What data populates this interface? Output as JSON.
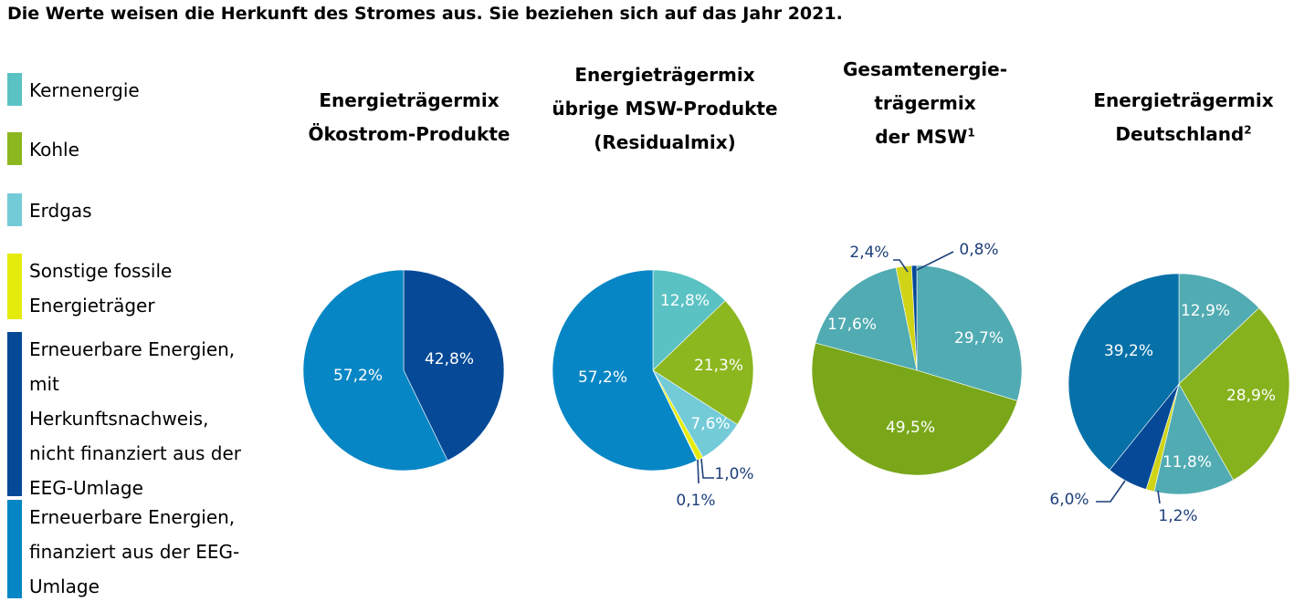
{
  "page_title": "Die Werte weisen die Herkunft des Stromes aus. Sie beziehen sich auf das Jahr 2021.",
  "legend": [
    {
      "label": [
        "Kernenergie"
      ],
      "color": "#5bc2c4"
    },
    {
      "label": [
        "Kohle"
      ],
      "color": "#8cb71f"
    },
    {
      "label": [
        "Erdgas"
      ],
      "color": "#74cbd8"
    },
    {
      "label": [
        "Sonstige fossile",
        "Energieträger"
      ],
      "color": "#e5ec0d"
    },
    {
      "label": [
        "Erneuerbare Energien,",
        "mit",
        "Herkunftsnachweis,",
        "nicht finanziert aus der",
        "EEG-Umlage"
      ],
      "color": "#064a97"
    },
    {
      "label": [
        "Erneuerbare Energien,",
        "finanziert aus der EEG-",
        "Umlage"
      ],
      "color": "#0786c5"
    }
  ],
  "chart_data": [
    {
      "type": "pie",
      "title": [
        "Energieträgermix",
        "Ökostrom-Produkte"
      ],
      "slices": [
        {
          "label": "Erneuerbare Energien, mit Herkunftsnachweis, nicht finanziert aus der EEG-Umlage",
          "value": 42.8,
          "display": "42,8%",
          "color": "#064a97"
        },
        {
          "label": "Erneuerbare Energien, finanziert aus der EEG-Umlage",
          "value": 57.2,
          "display": "57,2%",
          "color": "#0786c5"
        }
      ]
    },
    {
      "type": "pie",
      "title": [
        "Energieträgermix",
        "übrige MSW-Produkte",
        "(Residualmix)"
      ],
      "slices": [
        {
          "label": "Kernenergie",
          "value": 12.8,
          "display": "12,8%",
          "color": "#5bc2c4"
        },
        {
          "label": "Kohle",
          "value": 21.3,
          "display": "21,3%",
          "color": "#8cb71f"
        },
        {
          "label": "Erdgas",
          "value": 7.6,
          "display": "7,6%",
          "color": "#74cbd8"
        },
        {
          "label": "Sonstige fossile Energieträger",
          "value": 1.0,
          "display": "1,0%",
          "color": "#e5ec0d"
        },
        {
          "label": "Erneuerbare Energien, mit Herkunftsnachweis, nicht finanziert aus der EEG-Umlage",
          "value": 0.1,
          "display": "0,1%",
          "color": "#064a97"
        },
        {
          "label": "Erneuerbare Energien, finanziert aus der EEG-Umlage",
          "value": 57.2,
          "display": "57,2%",
          "color": "#0786c5"
        }
      ]
    },
    {
      "type": "pie",
      "title": [
        "Gesamtenergie-",
        "trägermix",
        "der MSW"
      ],
      "title_sup": "1",
      "slices": [
        {
          "label": "Kernenergie",
          "value": 29.7,
          "display": "29,7%",
          "color": "#51abb2"
        },
        {
          "label": "Kohle",
          "value": 49.5,
          "display": "49,5%",
          "color": "#79a719"
        },
        {
          "label": "Erdgas",
          "value": 17.6,
          "display": "17,6%",
          "color": "#51abb2"
        },
        {
          "label": "Sonstige fossile Energieträger",
          "value": 2.4,
          "display": "2,4%",
          "color": "#cfd417"
        },
        {
          "label": "Erneuerbare Energien, mit Herkunftsnachweis, nicht finanziert aus der EEG-Umlage",
          "value": 0.8,
          "display": "0,8%",
          "color": "#064a97"
        }
      ]
    },
    {
      "type": "pie",
      "title": [
        "Energieträgermix",
        "Deutschland"
      ],
      "title_sup": "2",
      "slices": [
        {
          "label": "Kernenergie",
          "value": 12.9,
          "display": "12,9%",
          "color": "#51abb2"
        },
        {
          "label": "Kohle",
          "value": 28.9,
          "display": "28,9%",
          "color": "#86b21d"
        },
        {
          "label": "Erdgas",
          "value": 11.8,
          "display": "11,8%",
          "color": "#51abb2"
        },
        {
          "label": "Sonstige fossile Energieträger",
          "value": 1.2,
          "display": "1,2%",
          "color": "#cfd417"
        },
        {
          "label": "Erneuerbare Energien, mit Herkunftsnachweis, nicht finanziert aus der EEG-Umlage",
          "value": 6.0,
          "display": "6,0%",
          "color": "#064a97"
        },
        {
          "label": "Erneuerbare Energien, finanziert aus der EEG-Umlage",
          "value": 39.2,
          "display": "39,2%",
          "color": "#0670a8"
        }
      ]
    }
  ]
}
